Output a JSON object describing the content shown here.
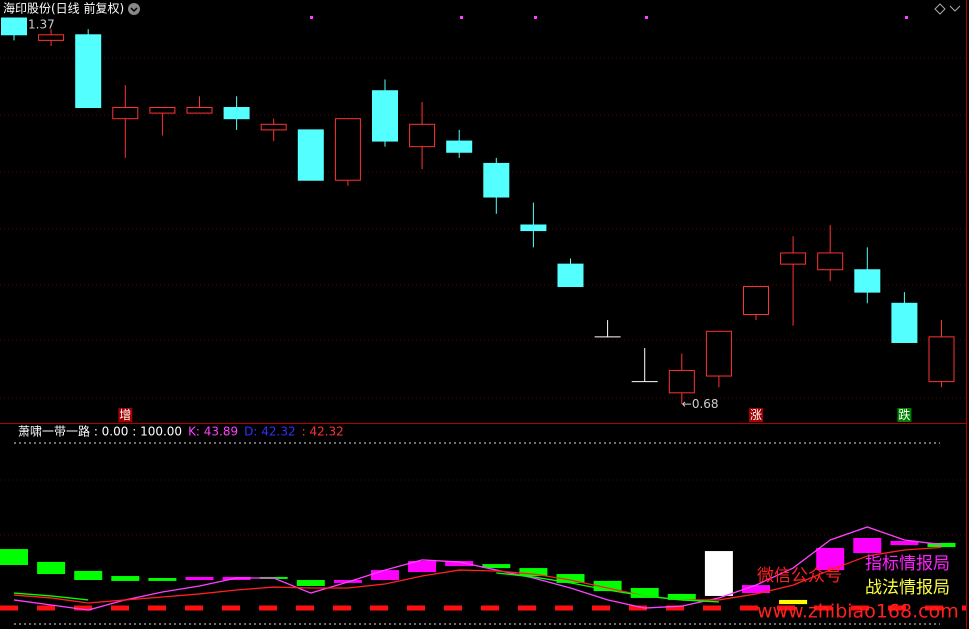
{
  "chart_data": [
    {
      "type": "candlestick",
      "title": "海印股份(日线 前复权)",
      "ylim": [
        0.68,
        1.37
      ],
      "open": [
        1.37,
        1.33,
        1.34,
        1.19,
        1.2,
        1.2,
        1.21,
        1.17,
        1.17,
        1.08,
        1.24,
        1.14,
        1.15,
        1.11,
        1.0,
        0.93,
        0.8,
        0.72,
        0.7,
        0.73,
        0.84,
        0.93,
        0.92,
        0.92,
        0.86,
        0.72
      ],
      "close": [
        1.34,
        1.34,
        1.21,
        1.21,
        1.21,
        1.21,
        1.19,
        1.18,
        1.08,
        1.19,
        1.15,
        1.18,
        1.13,
        1.05,
        0.99,
        0.89,
        0.8,
        0.72,
        0.74,
        0.81,
        0.89,
        0.95,
        0.95,
        0.88,
        0.79,
        0.8
      ],
      "high": [
        1.37,
        1.35,
        1.35,
        1.25,
        1.21,
        1.23,
        1.23,
        1.19,
        1.17,
        1.19,
        1.26,
        1.22,
        1.17,
        1.12,
        1.04,
        0.94,
        0.83,
        0.78,
        0.77,
        0.81,
        0.89,
        0.98,
        1.0,
        0.96,
        0.88,
        0.83
      ],
      "low": [
        1.33,
        1.32,
        1.21,
        1.12,
        1.16,
        1.2,
        1.17,
        1.15,
        1.08,
        1.07,
        1.14,
        1.1,
        1.12,
        1.02,
        0.96,
        0.89,
        0.8,
        0.72,
        0.68,
        0.71,
        0.83,
        0.82,
        0.9,
        0.86,
        0.79,
        0.71
      ],
      "up_color": "#ff3232",
      "down_color": "#54ffff",
      "flat_color": "#ffffff",
      "high_label": "1.37",
      "low_label": "←0.68",
      "signals": [
        null,
        null,
        null,
        {
          "text": "增",
          "color": "#a00000"
        },
        null,
        null,
        null,
        null,
        null,
        null,
        null,
        null,
        null,
        null,
        null,
        null,
        null,
        null,
        null,
        null,
        {
          "text": "涨",
          "color": "#a00000"
        },
        null,
        null,
        null,
        {
          "text": "跌",
          "color": "#008000"
        },
        null
      ]
    },
    {
      "type": "indicator",
      "ylim": [
        0,
        100
      ],
      "header": [
        {
          "text": "萧啸一带一路 : 0.00 : 100.00",
          "color": "#ffffff"
        },
        {
          "text": "K: 43.89",
          "color": "#ff40ff"
        },
        {
          "text": "D: 42.32",
          "color": "#3030ff"
        },
        {
          "text": ": 42.32",
          "color": "#ff3232"
        }
      ],
      "block_low": [
        32.6,
        27.6,
        24.3,
        23.8,
        23.8,
        24.3,
        24.3,
        24.9,
        21.0,
        22.7,
        24.3,
        28.7,
        32.0,
        30.9,
        26.5,
        22.7,
        18.2,
        14.4,
        13.3,
        15.5,
        17.1,
        11.0,
        29.8,
        39.2,
        43.6,
        42.5
      ],
      "block_high": [
        41.4,
        34.3,
        29.3,
        26.5,
        25.4,
        26.0,
        26.0,
        26.0,
        24.3,
        24.3,
        29.8,
        34.8,
        34.8,
        33.1,
        30.9,
        27.6,
        23.8,
        19.9,
        16.6,
        40.3,
        21.5,
        13.3,
        42.0,
        47.5,
        45.9,
        44.8
      ],
      "block_color": [
        "#00ff00",
        "#00ff00",
        "#00ff00",
        "#00ff00",
        "#00ff00",
        "#ff00ff",
        "#ff00ff",
        "#00ff00",
        "#00ff00",
        "#ff00ff",
        "#ff00ff",
        "#ff00ff",
        "#ff00ff",
        "#00ff00",
        "#00ff00",
        "#00ff00",
        "#00ff00",
        "#00ff00",
        "#00ff00",
        "#ffffff",
        "#ff00ff",
        "#ffff00",
        "#ff00ff",
        "#ff00ff",
        "#ff00ff",
        "#00ff00"
      ],
      "lines": [
        {
          "color": "#ff40ff",
          "values": [
            13.3,
            10.5,
            7.7,
            13.3,
            17.7,
            21.0,
            25.4,
            25.4,
            17.1,
            23.2,
            29.8,
            35.4,
            34.3,
            29.8,
            25.4,
            19.9,
            13.3,
            8.8,
            9.9,
            14.4,
            21.5,
            30.9,
            46.4,
            53.6,
            46.4,
            43.89
          ]
        },
        {
          "color": "#ff2020",
          "values": [
            16.0,
            14.4,
            11.6,
            13.3,
            14.9,
            16.6,
            18.8,
            20.4,
            19.9,
            19.9,
            22.1,
            26.5,
            29.8,
            29.3,
            27.6,
            24.3,
            19.9,
            15.5,
            13.3,
            13.3,
            16.6,
            21.5,
            29.8,
            37.6,
            40.9,
            42.32
          ]
        },
        {
          "color": "#00ff00",
          "values": [
            17.1,
            15.5,
            13.3,
            null,
            null,
            null,
            null,
            null,
            null,
            null,
            null,
            null,
            null,
            28.2,
            26.0,
            22.7,
            18.8,
            15.5,
            13.3,
            12.2,
            null,
            null,
            null,
            null,
            null,
            null
          ]
        }
      ]
    }
  ],
  "watermark": {
    "wechat": "微信公众号",
    "line1": "指标情报局",
    "line2": "战法情报局",
    "url": "www.zhibiao168.com"
  }
}
